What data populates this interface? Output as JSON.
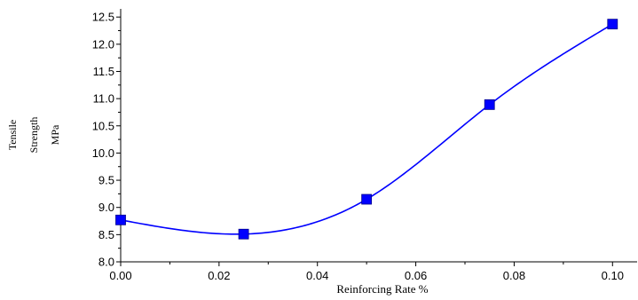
{
  "chart_data": {
    "type": "line",
    "title": "",
    "xlabel": "Reinforcing Rate %",
    "ylabel_lines": [
      "Tensile",
      "Strength",
      "MPa"
    ],
    "x": [
      0.0,
      0.025,
      0.05,
      0.075,
      0.1
    ],
    "series": [
      {
        "values": [
          8.77,
          8.51,
          9.15,
          10.89,
          12.37
        ]
      }
    ],
    "xlim": [
      0.0,
      0.105
    ],
    "ylim": [
      8.0,
      12.65
    ],
    "xticks": [
      0.0,
      0.02,
      0.04,
      0.06,
      0.08,
      0.1
    ],
    "xtick_labels": [
      "0.00",
      "0.02",
      "0.04",
      "0.06",
      "0.08",
      "0.10"
    ],
    "yticks": [
      8.0,
      8.5,
      9.0,
      9.5,
      10.0,
      10.5,
      11.0,
      11.5,
      12.0,
      12.5
    ],
    "ytick_labels": [
      "8.0",
      "8.5",
      "9.0",
      "9.5",
      "10.0",
      "10.5",
      "11.0",
      "11.5",
      "12.0",
      "12.5"
    ],
    "marker": "square",
    "grid": false,
    "colors": {
      "line": "#0000ff",
      "marker": "#0000ff",
      "axis": "#000000"
    }
  }
}
